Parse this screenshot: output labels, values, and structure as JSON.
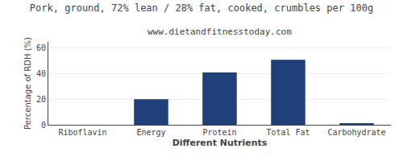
{
  "chart_data": {
    "type": "bar",
    "title": "Pork, ground, 72% lean / 28% fat, cooked, crumbles per 100g",
    "subtitle": "www.dietandfitnesstoday.com",
    "categories": [
      "Riboflavin",
      "Energy",
      "Protein",
      "Total Fat",
      "Carbohydrate"
    ],
    "values": [
      0,
      20,
      41,
      51,
      1
    ],
    "color": "#1F3F7A",
    "xlabel": "Different Nutrients",
    "ylabel": "Percentage of RDH (%)",
    "ylim": [
      0,
      65
    ],
    "yticks": [
      0,
      20,
      40,
      60
    ],
    "grid": true
  }
}
